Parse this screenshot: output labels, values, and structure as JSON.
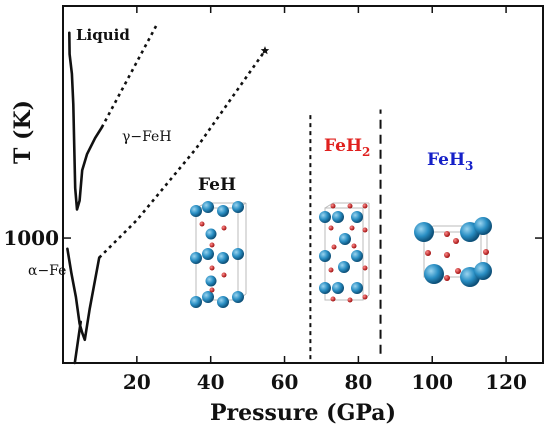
{
  "colors": {
    "feh": "#111111",
    "feh2": "#e0201e",
    "feh3": "#1520c8",
    "atom_fe": "#1f7fb3",
    "atom_h": "#c81818"
  },
  "chart_data": {
    "type": "line",
    "xlabel": "Pressure (GPa)",
    "ylabel": "T (K)",
    "xlim": [
      0,
      130
    ],
    "ylim": [
      300,
      2300
    ],
    "x_ticks": [
      {
        "value": 20,
        "label": "20"
      },
      {
        "value": 40,
        "label": "40"
      },
      {
        "value": 60,
        "label": "60"
      },
      {
        "value": 80,
        "label": "80"
      },
      {
        "value": 100,
        "label": "100"
      },
      {
        "value": 120,
        "label": "120"
      }
    ],
    "y_ticks": [
      {
        "value": 1000,
        "label": "1000"
      }
    ],
    "grid": false,
    "annotations": {
      "liquid": "Liquid",
      "gamma_fe_h": "γ−FeH",
      "alpha_fe": "α−Fe",
      "feh": "FeH",
      "feh2_main": "FeH",
      "feh2_sub": "2",
      "feh3_main": "FeH",
      "feh3_sub": "3"
    },
    "series": [
      {
        "style": "solid",
        "points": [
          [
            1.7,
            2150
          ],
          [
            1.8,
            2030
          ],
          [
            2.4,
            1920
          ],
          [
            2.8,
            1750
          ],
          [
            3.0,
            1550
          ],
          [
            3.3,
            1280
          ],
          [
            3.8,
            1160
          ],
          [
            4.5,
            1210
          ],
          [
            5.2,
            1380
          ],
          [
            6.5,
            1470
          ],
          [
            8.7,
            1560
          ],
          [
            10.5,
            1620
          ]
        ]
      },
      {
        "style": "dotted",
        "points": [
          [
            10.5,
            1620
          ],
          [
            25.5,
            2200
          ]
        ]
      },
      {
        "style": "dotted",
        "points": [
          [
            9.8,
            890
          ],
          [
            20.0,
            1100
          ],
          [
            36.0,
            1500
          ],
          [
            54.7,
            2050
          ]
        ]
      },
      {
        "style": "solid",
        "points": [
          [
            1.2,
            940
          ],
          [
            2.3,
            800
          ],
          [
            3.5,
            670
          ],
          [
            4.5,
            520
          ],
          [
            5.2,
            470
          ],
          [
            5.9,
            430
          ],
          [
            7.2,
            600
          ],
          [
            9.8,
            890
          ]
        ]
      },
      {
        "style": "solid",
        "points": [
          [
            4.8,
            530
          ],
          [
            3.2,
            300
          ]
        ]
      }
    ],
    "markers": [
      {
        "symbol": "star",
        "x": 54.7,
        "y": 2050
      }
    ],
    "boundaries": [
      {
        "x": 67,
        "y_range": [
          322,
          1700
        ],
        "style": "dotted"
      },
      {
        "x": 86,
        "y_range": [
          352,
          1720
        ],
        "style": "dashed"
      }
    ]
  }
}
